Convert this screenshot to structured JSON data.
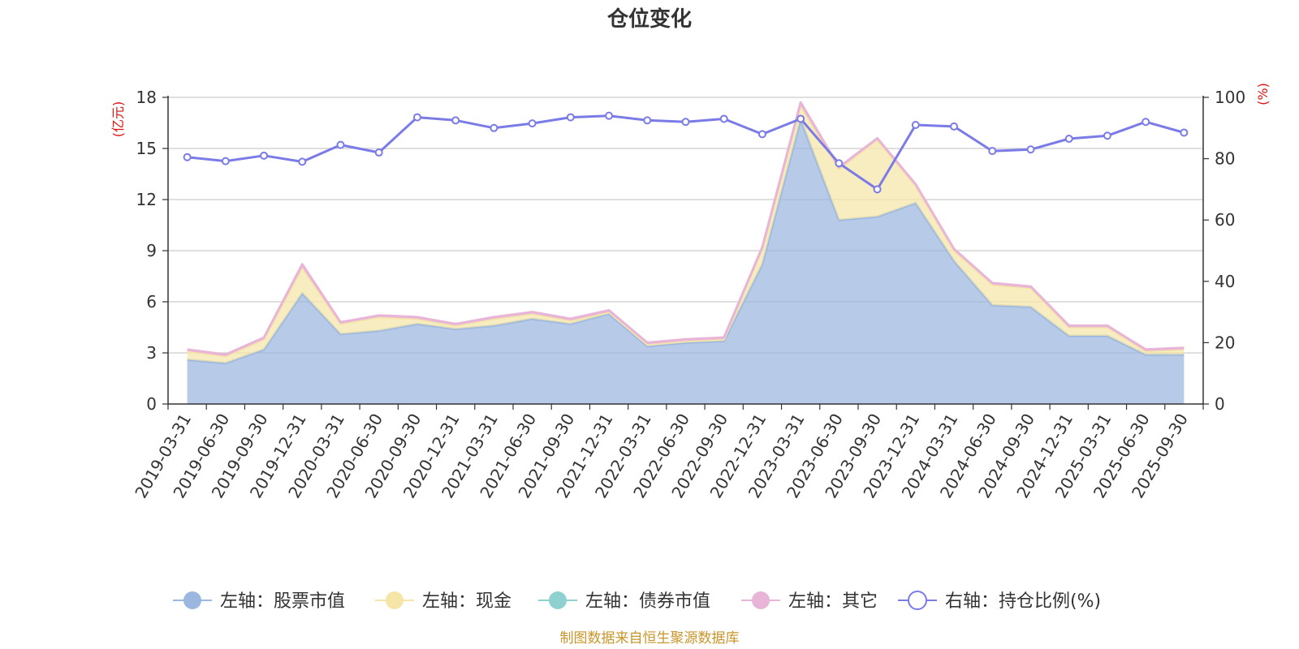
{
  "chart_data": {
    "type": "area",
    "title": "仓位变化",
    "left_axis_unit": "(亿元)",
    "right_axis_unit": "(%)",
    "left_ylim": [
      0,
      18
    ],
    "left_ticks": [
      0,
      3,
      6,
      9,
      12,
      15,
      18
    ],
    "right_ylim": [
      0,
      100
    ],
    "right_ticks": [
      0,
      20,
      40,
      60,
      80,
      100
    ],
    "grid": true,
    "legend_position": "bottom",
    "categories": [
      "2019-03-31",
      "2019-06-30",
      "2019-09-30",
      "2019-12-31",
      "2020-03-31",
      "2020-06-30",
      "2020-09-30",
      "2020-12-31",
      "2021-03-31",
      "2021-06-30",
      "2021-09-30",
      "2021-12-31",
      "2022-03-31",
      "2022-06-30",
      "2022-09-30",
      "2022-12-31",
      "2023-03-31",
      "2023-06-30",
      "2023-09-30",
      "2023-12-31",
      "2024-03-31",
      "2024-06-30",
      "2024-09-30",
      "2024-12-31",
      "2025-03-31",
      "2025-06-30",
      "2025-09-30"
    ],
    "series": [
      {
        "name": "左轴：股票市值",
        "axis": "left",
        "stack": true,
        "color": "#9bb7e0",
        "values": [
          2.6,
          2.4,
          3.2,
          6.5,
          4.1,
          4.3,
          4.7,
          4.4,
          4.6,
          5.0,
          4.7,
          5.3,
          3.4,
          3.6,
          3.7,
          8.2,
          16.7,
          10.8,
          11.0,
          11.8,
          8.4,
          5.8,
          5.7,
          4.0,
          4.0,
          2.9,
          2.9
        ]
      },
      {
        "name": "左轴：现金",
        "axis": "left",
        "stack": true,
        "color": "#f5e6a8",
        "values": [
          0.5,
          0.4,
          0.6,
          1.5,
          0.6,
          0.8,
          0.3,
          0.2,
          0.4,
          0.3,
          0.2,
          0.1,
          0.1,
          0.1,
          0.1,
          0.9,
          0.8,
          3.0,
          4.5,
          1.0,
          0.6,
          1.2,
          1.1,
          0.5,
          0.5,
          0.2,
          0.3
        ]
      },
      {
        "name": "左轴：债券市值",
        "axis": "left",
        "stack": true,
        "color": "#8fd0d0",
        "values": [
          0,
          0,
          0,
          0,
          0,
          0,
          0,
          0,
          0,
          0,
          0,
          0,
          0,
          0,
          0,
          0,
          0,
          0,
          0,
          0,
          0,
          0,
          0,
          0,
          0,
          0,
          0
        ]
      },
      {
        "name": "左轴：其它",
        "axis": "left",
        "stack": true,
        "color": "#e8b4d8",
        "values": [
          0.1,
          0.1,
          0.1,
          0.2,
          0.1,
          0.1,
          0.1,
          0.1,
          0.1,
          0.1,
          0.1,
          0.1,
          0.1,
          0.1,
          0.1,
          0.1,
          0.2,
          0.1,
          0.1,
          0.1,
          0.1,
          0.1,
          0.1,
          0.1,
          0.1,
          0.1,
          0.1
        ]
      },
      {
        "name": "右轴：持仓比例(%)",
        "axis": "right",
        "type": "line",
        "color": "#7b7be8",
        "values": [
          80.5,
          79.2,
          81.0,
          79.0,
          84.5,
          82.0,
          93.5,
          92.5,
          90.0,
          91.5,
          93.5,
          94.0,
          92.5,
          92.0,
          93.0,
          88.0,
          93.0,
          78.5,
          70.0,
          91.0,
          90.5,
          82.5,
          83.0,
          86.5,
          87.5,
          92.0,
          88.5
        ]
      }
    ],
    "source_note": "制图数据来自恒生聚源数据库"
  }
}
